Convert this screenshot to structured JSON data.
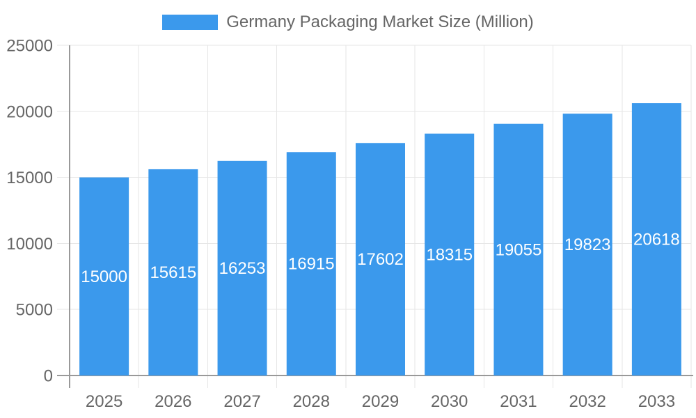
{
  "chart_data": {
    "type": "bar",
    "title": "",
    "legend": {
      "position": "top",
      "label": "Germany Packaging Market Size (Million)"
    },
    "categories": [
      "2025",
      "2026",
      "2027",
      "2028",
      "2029",
      "2030",
      "2031",
      "2032",
      "2033"
    ],
    "series": [
      {
        "name": "Germany Packaging Market Size (Million)",
        "values": [
          15000,
          15615,
          16253,
          16915,
          17602,
          18315,
          19055,
          19823,
          20618
        ]
      }
    ],
    "xlabel": "",
    "ylabel": "",
    "ylim": [
      0,
      25000
    ],
    "y_ticks": [
      0,
      5000,
      10000,
      15000,
      20000,
      25000
    ],
    "grid": true,
    "value_labels_position": "inside-center",
    "colors": {
      "bar": "#3B99EC",
      "gridline": "#E6E6E6",
      "axis_line": "#999999",
      "tick_label": "#666666",
      "legend_text": "#666666",
      "value_label": "#FFFFFF",
      "background": "#FFFFFF"
    }
  }
}
